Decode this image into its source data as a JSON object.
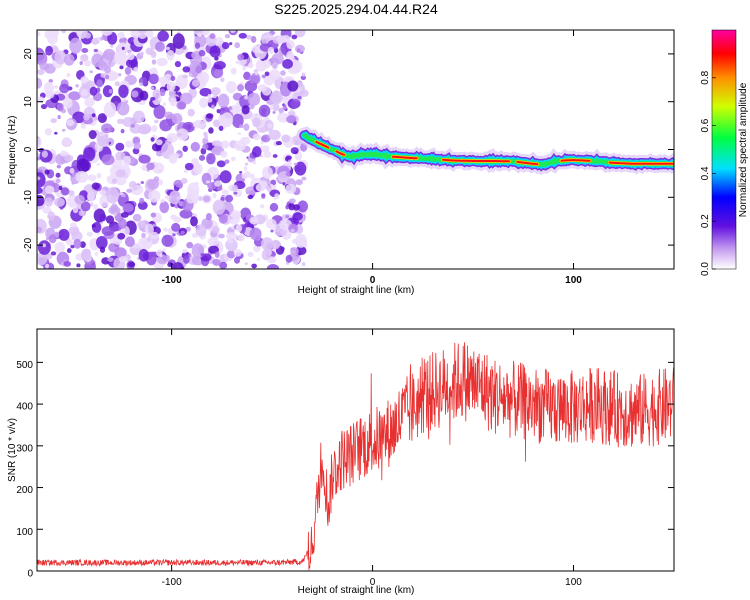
{
  "title": "S225.2025.294.04.44.R24",
  "chart_data": [
    {
      "type": "heatmap",
      "xlabel": "Height of straight line (km)",
      "ylabel": "Frequency (Hz)",
      "xlim": [
        -167,
        150
      ],
      "ylim": [
        -25,
        25
      ],
      "xticks": [
        -100,
        0,
        100
      ],
      "yticks": [
        20,
        10,
        0,
        -10,
        -20
      ],
      "noise_region_x": [
        -167,
        -34
      ],
      "signal_track": {
        "x": [
          -34,
          -30,
          -25,
          -20,
          -15,
          -10,
          -5,
          0,
          10,
          20,
          30,
          40,
          50,
          60,
          70,
          80,
          85,
          90,
          95,
          100,
          110,
          120,
          130,
          140,
          150
        ],
        "y": [
          3,
          2,
          1,
          0,
          -1,
          -1.5,
          -1,
          -1,
          -1.5,
          -1.8,
          -2,
          -2.3,
          -2.4,
          -2.4,
          -2.5,
          -3,
          -3.2,
          -2.6,
          -2.3,
          -2.2,
          -2.4,
          -2.8,
          -3.0,
          -3.0,
          -3.0
        ]
      },
      "colorbar": {
        "label": "Normalized spectral amplitude",
        "range": [
          0,
          1
        ],
        "ticks": [
          0.0,
          0.2,
          0.4,
          0.6,
          0.8
        ]
      }
    },
    {
      "type": "line",
      "xlabel": "Height of straight line (km)",
      "ylabel": "SNR (10 * v/v)",
      "xlim": [
        -167,
        150
      ],
      "ylim": [
        0,
        580
      ],
      "xticks": [
        -100,
        0,
        100
      ],
      "yticks": [
        0,
        100,
        200,
        300,
        400,
        500
      ],
      "color": "#e83030",
      "series": [
        {
          "name": "SNR",
          "x": [
            -167,
            -150,
            -130,
            -110,
            -90,
            -70,
            -50,
            -35,
            -30,
            -25,
            -22,
            -20,
            -15,
            -10,
            -5,
            0,
            5,
            10,
            15,
            20,
            25,
            30,
            35,
            40,
            45,
            50,
            55,
            60,
            70,
            80,
            90,
            100,
            110,
            120,
            130,
            140,
            150
          ],
          "values": [
            20,
            20,
            20,
            20,
            20,
            20,
            20,
            22,
            60,
            280,
            150,
            230,
            270,
            280,
            300,
            310,
            320,
            340,
            370,
            390,
            420,
            430,
            440,
            450,
            460,
            450,
            440,
            420,
            410,
            400,
            390,
            390,
            400,
            390,
            380,
            390,
            400
          ]
        }
      ]
    }
  ]
}
